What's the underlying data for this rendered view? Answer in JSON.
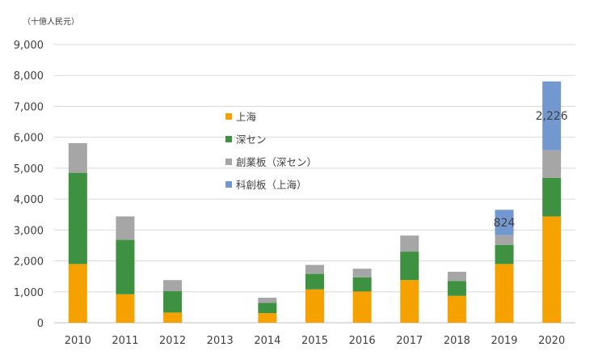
{
  "chart_data": {
    "type": "bar",
    "stacked": true,
    "unit_label": "（十億人民元）",
    "categories": [
      "2010",
      "2011",
      "2012",
      "2013",
      "2014",
      "2015",
      "2016",
      "2017",
      "2018",
      "2019",
      "2020"
    ],
    "ylim": [
      0,
      9000
    ],
    "yticks": [
      "0",
      "1,000",
      "2,000",
      "3,000",
      "4,000",
      "5,000",
      "6,000",
      "7,000",
      "8,000",
      "9,000"
    ],
    "ytick_values": [
      0,
      1000,
      2000,
      3000,
      4000,
      5000,
      6000,
      7000,
      8000,
      9000
    ],
    "grid": true,
    "legend_position": "center",
    "series": [
      {
        "name": "上海",
        "color": "#f5a200",
        "values": [
          1900,
          920,
          330,
          0,
          310,
          1080,
          1010,
          1380,
          870,
          1900,
          3440
        ]
      },
      {
        "name": "深セン",
        "color": "#3d9140",
        "values": [
          2950,
          1760,
          690,
          0,
          330,
          500,
          460,
          920,
          480,
          620,
          1250
        ]
      },
      {
        "name": "創業板（深セン）",
        "color": "#a6a6a6",
        "values": [
          960,
          760,
          360,
          0,
          170,
          290,
          280,
          520,
          300,
          310,
          890
        ]
      },
      {
        "name": "科創板（上海）",
        "color": "#7298cf",
        "values": [
          0,
          0,
          0,
          0,
          0,
          0,
          0,
          0,
          0,
          824,
          2226
        ]
      }
    ],
    "annotations": [
      {
        "category": "2019",
        "text": "824"
      },
      {
        "category": "2020",
        "text": "2,226"
      }
    ]
  }
}
